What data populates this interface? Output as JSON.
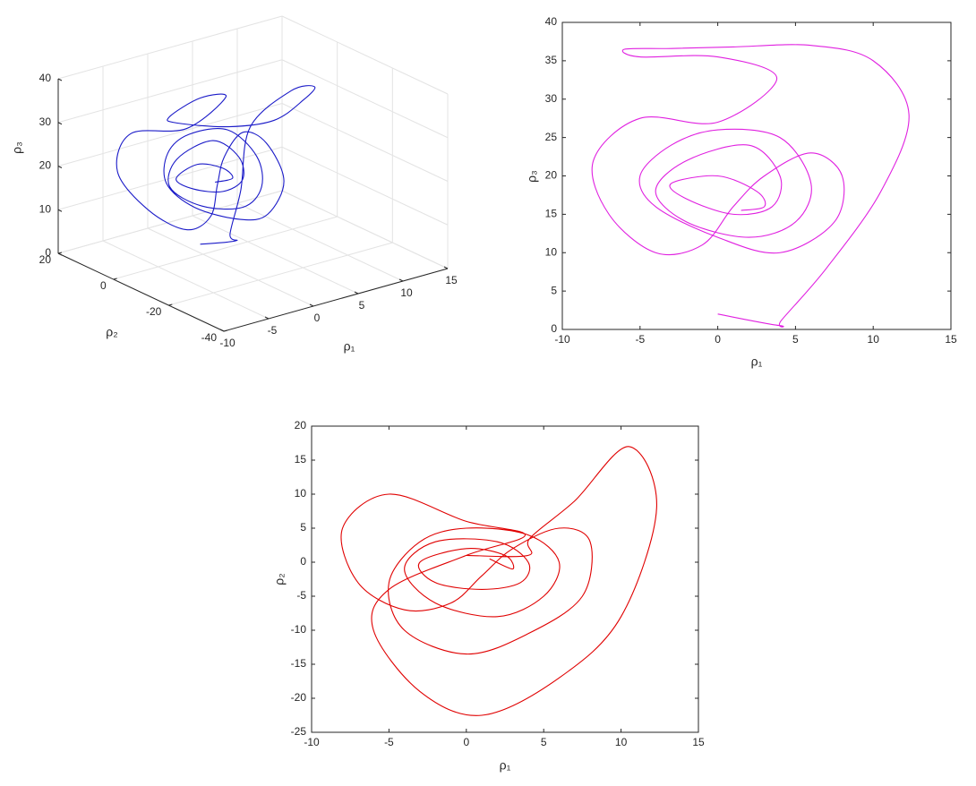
{
  "chart_data": [
    {
      "type": "line3d",
      "xlabel": "ρ₁",
      "ylabel": "ρ₂",
      "zlabel": "ρ₃",
      "color": "#1a1ac8",
      "grid": true,
      "xlim": [
        -10,
        15
      ],
      "ylim": [
        -40,
        20
      ],
      "zlim": [
        0,
        40
      ],
      "xticks": [
        -10,
        -5,
        0,
        5,
        10,
        15
      ],
      "yticks": [
        -40,
        -20,
        0,
        20
      ],
      "zticks": [
        0,
        10,
        20,
        30,
        40
      ],
      "x": [
        0,
        4,
        4.1,
        7,
        10.5,
        12.3,
        10,
        6,
        1,
        -3,
        -6,
        -5,
        0,
        3.8,
        0,
        -5,
        -8,
        -7,
        -4,
        -1,
        1,
        3,
        6,
        8,
        7.5,
        4,
        0,
        -4,
        -5,
        -3,
        0,
        4,
        6,
        5,
        2,
        -2,
        -4,
        -2,
        2,
        4,
        3.5,
        1,
        -2,
        -3,
        0,
        2.5,
        3,
        1.5
      ],
      "y": [
        1,
        1,
        3.5,
        9,
        17,
        8,
        -8,
        -17,
        -22.5,
        -19,
        -10,
        -4,
        1,
        4,
        6,
        10,
        5,
        -3,
        -7,
        -6,
        -2,
        2,
        5,
        3,
        -5,
        -10.5,
        -13.5,
        -10,
        -3,
        3,
        5,
        4,
        0,
        -5,
        -8,
        -6,
        -1,
        3,
        3,
        0,
        -3,
        -4,
        -3,
        0,
        2,
        1,
        -1,
        0.5
      ],
      "z": [
        2,
        0.5,
        1.2,
        8,
        18,
        28,
        35,
        37,
        36.8,
        36.6,
        36.5,
        35.5,
        35.5,
        32.7,
        27,
        27.5,
        22,
        15,
        10,
        11,
        16,
        20,
        23,
        20,
        14,
        10,
        12,
        16,
        20,
        24,
        26,
        25,
        19,
        14,
        12,
        14,
        18,
        22,
        24,
        20,
        16,
        15,
        17,
        19,
        20,
        18,
        16,
        15.5
      ]
    },
    {
      "type": "line",
      "xlabel": "ρ₁",
      "ylabel": "ρ₃",
      "xlim": [
        -10,
        15
      ],
      "ylim": [
        0,
        40
      ],
      "xticks": [
        -10,
        -5,
        0,
        5,
        10,
        15
      ],
      "yticks": [
        0,
        5,
        10,
        15,
        20,
        25,
        30,
        35,
        40
      ],
      "x": [
        0,
        4,
        4.1,
        7,
        10.5,
        12.3,
        10,
        6,
        1,
        -3,
        -6,
        -5,
        0,
        3.8,
        0,
        -5,
        -8,
        -7,
        -4,
        -1,
        1,
        3,
        6,
        8,
        7.5,
        4,
        0,
        -4,
        -5,
        -3,
        0,
        4,
        6,
        5,
        2,
        -2,
        -4,
        -2,
        2,
        4,
        3.5,
        1,
        -2,
        -3,
        0,
        2.5,
        3,
        1.5
      ],
      "series": [
        {
          "color": "#e020e0",
          "values": [
            2,
            0.5,
            1.2,
            8,
            18,
            28,
            35,
            37,
            36.8,
            36.6,
            36.5,
            35.5,
            35.5,
            32.7,
            27,
            27.5,
            22,
            15,
            10,
            11,
            16,
            20,
            23,
            20,
            14,
            10,
            12,
            16,
            20,
            24,
            26,
            25,
            19,
            14,
            12,
            14,
            18,
            22,
            24,
            20,
            16,
            15,
            17,
            19,
            20,
            18,
            16,
            15.5
          ]
        }
      ]
    },
    {
      "type": "line",
      "xlabel": "ρ₁",
      "ylabel": "ρ₂",
      "xlim": [
        -10,
        15
      ],
      "ylim": [
        -25,
        20
      ],
      "xticks": [
        -10,
        -5,
        0,
        5,
        10,
        15
      ],
      "yticks": [
        -25,
        -20,
        -15,
        -10,
        -5,
        0,
        5,
        10,
        15,
        20
      ],
      "x": [
        0,
        4,
        4.1,
        7,
        10.5,
        12.3,
        10,
        6,
        1,
        -3,
        -6,
        -5,
        0,
        3.8,
        0,
        -5,
        -8,
        -7,
        -4,
        -1,
        1,
        3,
        6,
        8,
        7.5,
        4,
        0,
        -4,
        -5,
        -3,
        0,
        4,
        6,
        5,
        2,
        -2,
        -4,
        -2,
        2,
        4,
        3.5,
        1,
        -2,
        -3,
        0,
        2.5,
        3,
        1.5
      ],
      "series": [
        {
          "color": "#e00000",
          "values": [
            1,
            1,
            3.5,
            9,
            17,
            8,
            -8,
            -17,
            -22.5,
            -19,
            -10,
            -4,
            1,
            4,
            6,
            10,
            5,
            -3,
            -7,
            -6,
            -2,
            2,
            5,
            3,
            -5,
            -10.5,
            -13.5,
            -10,
            -3,
            3,
            5,
            4,
            0,
            -5,
            -8,
            -6,
            -1,
            3,
            3,
            0,
            -3,
            -4,
            -3,
            0,
            2,
            1,
            -1,
            0.5
          ]
        }
      ]
    }
  ]
}
